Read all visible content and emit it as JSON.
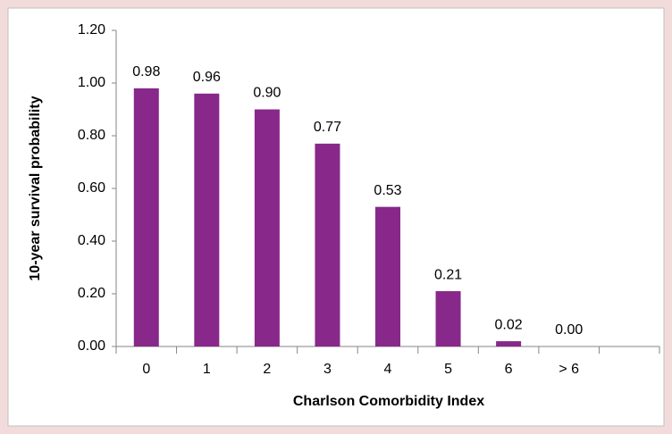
{
  "chart_data": {
    "type": "bar",
    "x_label": "Charlson Comorbidity Index",
    "y_label": "10-year survival probability",
    "categories": [
      "0",
      "1",
      "2",
      "3",
      "4",
      "5",
      "6",
      "> 6",
      null
    ],
    "values": [
      0.98,
      0.96,
      0.9,
      0.77,
      0.53,
      0.21,
      0.02,
      0,
      null
    ],
    "value_labels": [
      "0.98",
      "0.96",
      "0.90",
      "0.77",
      "0.53",
      "0.21",
      "0.02",
      "0.00",
      null
    ],
    "color": "#87288a",
    "ylim": [
      0,
      1.2
    ],
    "yticks": [
      {
        "value": 0,
        "label": "0.00"
      },
      {
        "value": 0.2,
        "label": "0.20"
      },
      {
        "value": 0.4,
        "label": "0.40"
      },
      {
        "value": 0.6,
        "label": "0.60"
      },
      {
        "value": 0.8,
        "label": "0.80"
      },
      {
        "value": 1,
        "label": "1.00"
      },
      {
        "value": 1.2,
        "label": "1.20"
      }
    ],
    "grid": false
  }
}
